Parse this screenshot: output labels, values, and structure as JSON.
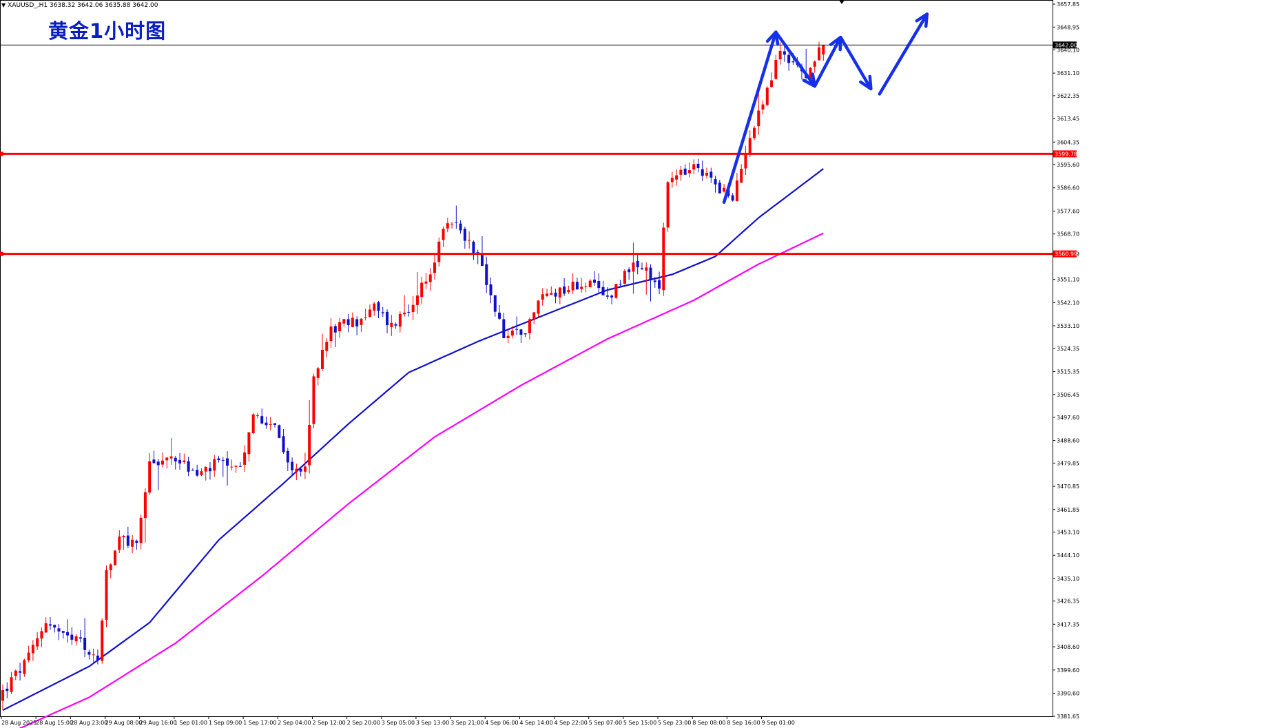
{
  "window": {
    "symbol_line": "XAUUSD_,H1  3638.32 3642.06 3635.88 3642.00",
    "title": "黄金1小时图"
  },
  "colors": {
    "bull": "#ff0000",
    "bear": "#1010cc",
    "ma_fast": "#1010cc",
    "ma_slow": "#ff00ff",
    "level_line": "#ff0000",
    "arrow": "#1530e8",
    "price_tag": "#ff0000",
    "current_tag": "#000000"
  },
  "chart_data": {
    "type": "candlestick",
    "symbol": "XAUUSD_",
    "timeframe": "H1",
    "title": "黄金1小时图",
    "ylim": [
      3381.65,
      3657.85
    ],
    "y_ticks": [
      "3657.85",
      "3648.95",
      "3640.10",
      "3631.10",
      "3622.35",
      "3613.45",
      "3604.35",
      "3595.60",
      "3586.60",
      "3577.60",
      "3568.70",
      "3560.99",
      "3551.10",
      "3542.10",
      "3533.10",
      "3524.35",
      "3515.35",
      "3506.45",
      "3497.60",
      "3488.60",
      "3479.85",
      "3470.85",
      "3461.85",
      "3453.10",
      "3444.10",
      "3435.10",
      "3426.35",
      "3417.35",
      "3408.60",
      "3399.60",
      "3390.60",
      "3381.65"
    ],
    "x_labels": [
      "28 Aug 2025",
      "28 Aug 15:00",
      "28 Aug 23:00",
      "29 Aug 08:00",
      "29 Aug 16:00",
      "1 Sep 01:00",
      "1 Sep 09:00",
      "1 Sep 17:00",
      "2 Sep 04:00",
      "2 Sep 12:00",
      "2 Sep 20:00",
      "3 Sep 05:00",
      "3 Sep 13:00",
      "3 Sep 21:00",
      "4 Sep 06:00",
      "4 Sep 14:00",
      "4 Sep 22:00",
      "5 Sep 07:00",
      "5 Sep 15:00",
      "5 Sep 23:00",
      "8 Sep 08:00",
      "8 Sep 16:00",
      "9 Sep 01:00"
    ],
    "ohlc_last": {
      "open": 3638.32,
      "high": 3642.06,
      "low": 3635.88,
      "close": 3642.0
    },
    "current_price": "3642.00",
    "horizontal_levels": [
      "3599.78",
      "3560.99"
    ],
    "close_path": [
      [
        0,
        3391
      ],
      [
        6,
        3404
      ],
      [
        10,
        3419
      ],
      [
        14,
        3412
      ],
      [
        18,
        3410
      ],
      [
        22,
        3403
      ],
      [
        24,
        3436
      ],
      [
        27,
        3450
      ],
      [
        31,
        3448
      ],
      [
        34,
        3480
      ],
      [
        40,
        3482
      ],
      [
        45,
        3475
      ],
      [
        50,
        3480
      ],
      [
        55,
        3476
      ],
      [
        58,
        3498
      ],
      [
        63,
        3496
      ],
      [
        66,
        3478
      ],
      [
        70,
        3477
      ],
      [
        72,
        3513
      ],
      [
        76,
        3532
      ],
      [
        82,
        3535
      ],
      [
        86,
        3540
      ],
      [
        90,
        3533
      ],
      [
        96,
        3544
      ],
      [
        100,
        3558
      ],
      [
        103,
        3574
      ],
      [
        106,
        3571
      ],
      [
        108,
        3565
      ],
      [
        110,
        3562
      ],
      [
        113,
        3543
      ],
      [
        116,
        3530
      ],
      [
        121,
        3532
      ],
      [
        125,
        3545
      ],
      [
        131,
        3548
      ],
      [
        135,
        3550
      ],
      [
        140,
        3544
      ],
      [
        145,
        3556
      ],
      [
        148,
        3555
      ],
      [
        152,
        3549
      ],
      [
        154,
        3589
      ],
      [
        160,
        3594
      ],
      [
        165,
        3589
      ],
      [
        169,
        3581
      ],
      [
        173,
        3608
      ],
      [
        177,
        3624
      ],
      [
        180,
        3640
      ],
      [
        186,
        3630
      ],
      [
        190,
        3642
      ]
    ],
    "series": [
      {
        "type": "line",
        "values": [
          [
            0,
            3384
          ],
          [
            20,
            3401
          ],
          [
            34,
            3418
          ],
          [
            50,
            3450
          ],
          [
            65,
            3472
          ],
          [
            80,
            3495
          ],
          [
            94,
            3515
          ],
          [
            110,
            3527
          ],
          [
            125,
            3537
          ],
          [
            140,
            3547
          ],
          [
            155,
            3553
          ],
          [
            165,
            3560
          ],
          [
            175,
            3575
          ],
          [
            190,
            3594
          ]
        ]
      },
      {
        "type": "line",
        "values": [
          [
            0,
            3374
          ],
          [
            20,
            3389
          ],
          [
            40,
            3410
          ],
          [
            60,
            3436
          ],
          [
            80,
            3464
          ],
          [
            100,
            3490
          ],
          [
            120,
            3510
          ],
          [
            140,
            3528
          ],
          [
            160,
            3543
          ],
          [
            175,
            3557
          ],
          [
            190,
            3569
          ]
        ]
      }
    ],
    "annotations": {
      "arrows": [
        {
          "from": [
            167,
            3581
          ],
          "to": [
            179,
            3647
          ]
        },
        {
          "from": [
            179,
            3647
          ],
          "to": [
            188,
            3626
          ]
        },
        {
          "from": [
            188,
            3626
          ],
          "to": [
            194,
            3645
          ]
        },
        {
          "from": [
            194,
            3645
          ],
          "to": [
            201,
            3625
          ]
        },
        {
          "from": [
            203,
            3623
          ],
          "to": [
            214,
            3654
          ]
        }
      ]
    }
  }
}
